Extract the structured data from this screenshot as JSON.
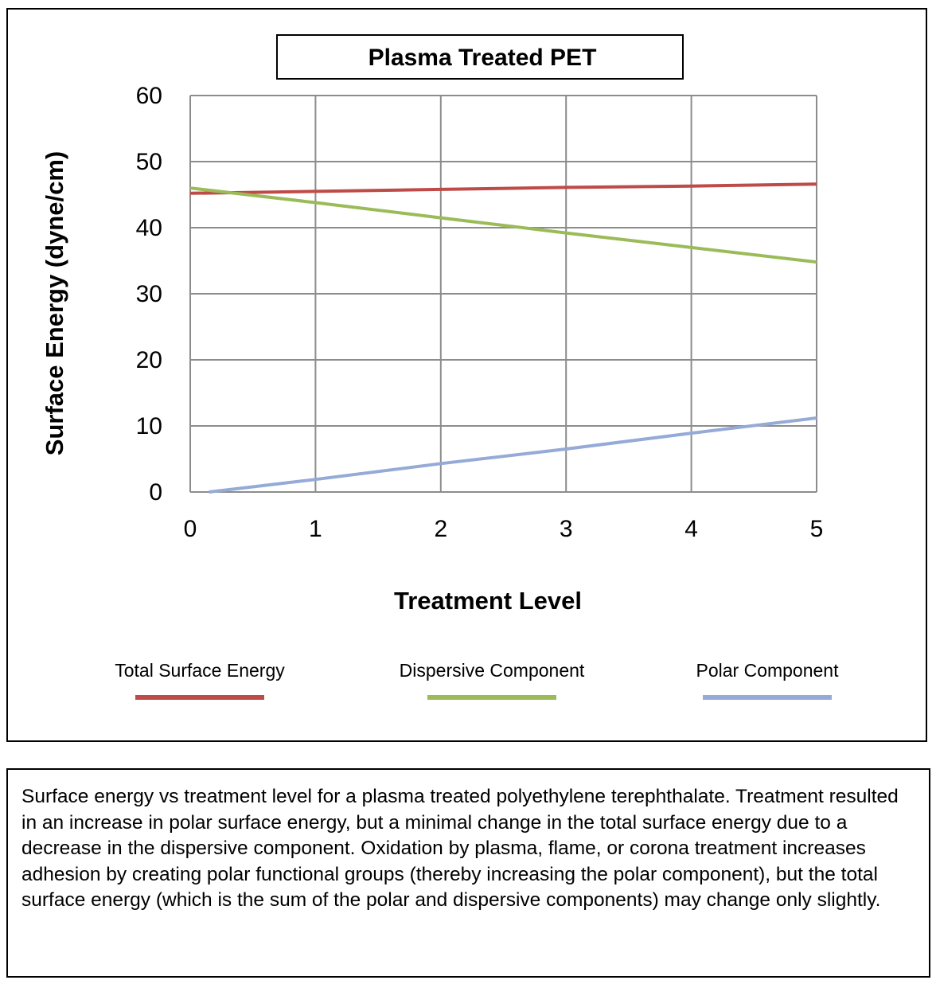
{
  "chart_data": {
    "type": "line",
    "title": "Plasma Treated PET",
    "xlabel": "Treatment Level",
    "ylabel": "Surface Energy (dyne/cm)",
    "xlim": [
      0,
      5
    ],
    "ylim": [
      0,
      60
    ],
    "xticks": [
      "0",
      "1",
      "2",
      "3",
      "4",
      "5"
    ],
    "yticks": [
      "0",
      "10",
      "20",
      "30",
      "40",
      "50",
      "60"
    ],
    "grid": true,
    "legend_position": "bottom",
    "series": [
      {
        "name": "Total Surface Energy",
        "color": "#BE4B48",
        "x": [
          0,
          1,
          2,
          3,
          4,
          5
        ],
        "values": [
          45.2,
          45.5,
          45.8,
          46.1,
          46.3,
          46.6
        ]
      },
      {
        "name": "Dispersive Component",
        "color": "#9BBB59",
        "x": [
          0,
          1,
          2,
          3,
          4,
          5
        ],
        "values": [
          46,
          43.8,
          41.5,
          39.2,
          37,
          34.8
        ]
      },
      {
        "name": "Polar Component",
        "color": "#95AAD7",
        "x": [
          0.15,
          1,
          2,
          3,
          4,
          5
        ],
        "values": [
          0,
          1.9,
          4.3,
          6.5,
          8.9,
          11.2
        ]
      }
    ]
  },
  "caption": "Surface energy vs treatment level for a plasma treated polyethylene terephthalate. Treatment resulted in an increase in polar surface energy, but a minimal change in the total surface energy due to a decrease in the dispersive component. Oxidation by plasma, flame, or corona treatment increases adhesion by creating polar functional groups (thereby increasing the polar component), but the total surface energy (which is the sum of the polar and dispersive components) may change only slightly."
}
